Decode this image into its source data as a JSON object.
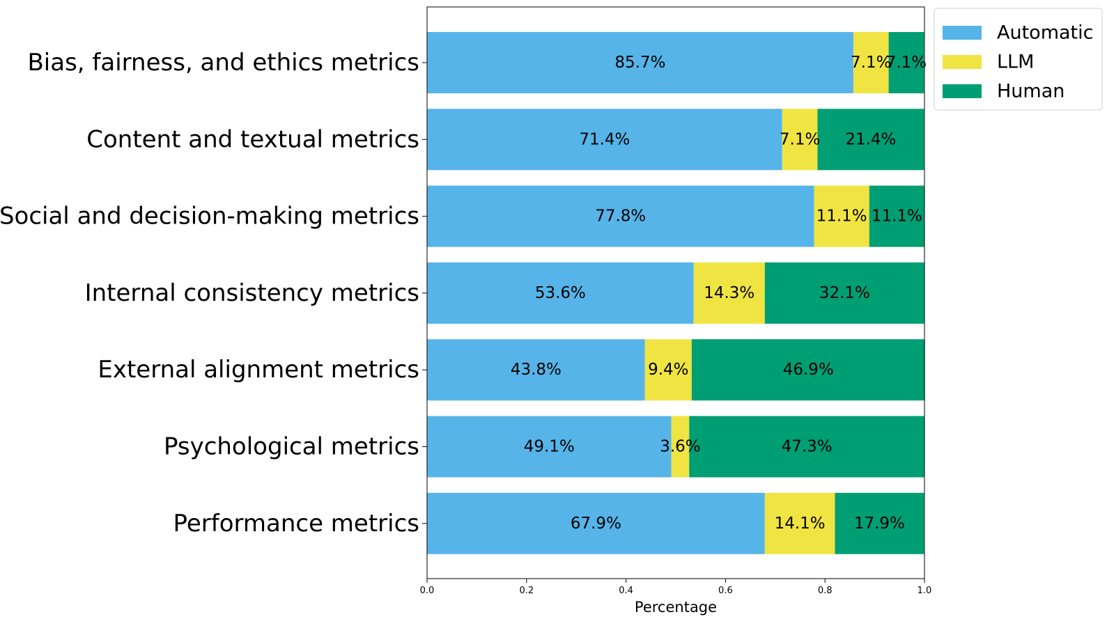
{
  "chart_data": {
    "type": "bar",
    "orientation": "horizontal",
    "stacked": true,
    "categories": [
      "Bias, fairness, and ethics metrics",
      "Content and textual metrics",
      "Social and decision-making metrics",
      "Internal consistency metrics",
      "External alignment metrics",
      "Psychological metrics",
      "Performance metrics"
    ],
    "series": [
      {
        "name": "Automatic",
        "color": "#56B4E9",
        "values": [
          0.857,
          0.714,
          0.778,
          0.536,
          0.438,
          0.491,
          0.679
        ],
        "labels": [
          "85.7%",
          "71.4%",
          "77.8%",
          "53.6%",
          "43.8%",
          "49.1%",
          "67.9%"
        ]
      },
      {
        "name": "LLM",
        "color": "#F0E442",
        "values": [
          0.071,
          0.071,
          0.111,
          0.143,
          0.094,
          0.036,
          0.141
        ],
        "labels": [
          "7.1%",
          "7.1%",
          "11.1%",
          "14.3%",
          "9.4%",
          "3.6%",
          "14.1%"
        ]
      },
      {
        "name": "Human",
        "color": "#009E73",
        "values": [
          0.071,
          0.214,
          0.111,
          0.321,
          0.469,
          0.473,
          0.179
        ],
        "labels": [
          "7.1%",
          "21.4%",
          "11.1%",
          "32.1%",
          "46.9%",
          "47.3%",
          "17.9%"
        ]
      }
    ],
    "xlabel": "Percentage",
    "ylabel": "",
    "xlim": [
      0,
      1
    ],
    "xticks": [
      "0.0",
      "0.2",
      "0.4",
      "0.6",
      "0.8",
      "1.0"
    ],
    "grid": false,
    "legend_position": "outside-top-right"
  }
}
